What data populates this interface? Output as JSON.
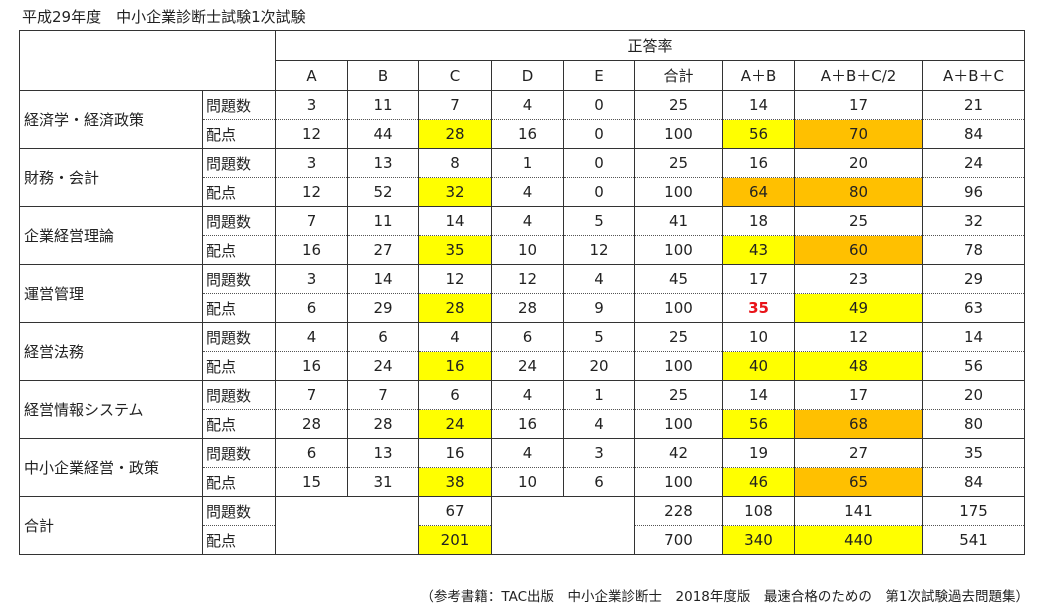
{
  "title": "平成29年度　中小企業診断士試験1次試験",
  "header": {
    "group": "正答率",
    "columns": [
      "A",
      "B",
      "C",
      "D",
      "E",
      "合計",
      "A＋B",
      "A＋B＋C/2",
      "A＋B＋C"
    ]
  },
  "row_labels": {
    "count": "問題数",
    "score": "配点"
  },
  "subjects": [
    {
      "name": "経済学・経済政策",
      "count": [
        "3",
        "11",
        "7",
        "4",
        "0",
        "25",
        "14",
        "17",
        "21"
      ],
      "score": [
        "12",
        "44",
        "28",
        "16",
        "0",
        "100",
        "56",
        "70",
        "84"
      ]
    },
    {
      "name": "財務・会計",
      "count": [
        "3",
        "13",
        "8",
        "1",
        "0",
        "25",
        "16",
        "20",
        "24"
      ],
      "score": [
        "12",
        "52",
        "32",
        "4",
        "0",
        "100",
        "64",
        "80",
        "96"
      ]
    },
    {
      "name": "企業経営理論",
      "count": [
        "7",
        "11",
        "14",
        "4",
        "5",
        "41",
        "18",
        "25",
        "32"
      ],
      "score": [
        "16",
        "27",
        "35",
        "10",
        "12",
        "100",
        "43",
        "60",
        "78"
      ]
    },
    {
      "name": "運営管理",
      "count": [
        "3",
        "14",
        "12",
        "12",
        "4",
        "45",
        "17",
        "23",
        "29"
      ],
      "score": [
        "6",
        "29",
        "28",
        "28",
        "9",
        "100",
        "35",
        "49",
        "63"
      ]
    },
    {
      "name": "経営法務",
      "count": [
        "4",
        "6",
        "4",
        "6",
        "5",
        "25",
        "10",
        "12",
        "14"
      ],
      "score": [
        "16",
        "24",
        "16",
        "24",
        "20",
        "100",
        "40",
        "48",
        "56"
      ]
    },
    {
      "name": "経営情報システム",
      "count": [
        "7",
        "7",
        "6",
        "4",
        "1",
        "25",
        "14",
        "17",
        "20"
      ],
      "score": [
        "28",
        "28",
        "24",
        "16",
        "4",
        "100",
        "56",
        "68",
        "80"
      ]
    },
    {
      "name": "中小企業経営・政策",
      "count": [
        "6",
        "13",
        "16",
        "4",
        "3",
        "42",
        "19",
        "27",
        "35"
      ],
      "score": [
        "15",
        "31",
        "38",
        "10",
        "6",
        "100",
        "46",
        "65",
        "84"
      ]
    }
  ],
  "total": {
    "name": "合計",
    "count": {
      "C": "67",
      "total": "228",
      "ab": "108",
      "abc2": "141",
      "abc": "175"
    },
    "score": {
      "C": "201",
      "total": "700",
      "ab": "340",
      "abc2": "440",
      "abc": "541"
    }
  },
  "footer": "（参考書籍：TAC出版　中小企業診断士　2018年度版　最速合格のための　第1次試験過去問題集）",
  "colors": {
    "highlight_yellow": "#ffff00",
    "highlight_orange": "#ffc000",
    "alert_red": "#e8141a"
  }
}
